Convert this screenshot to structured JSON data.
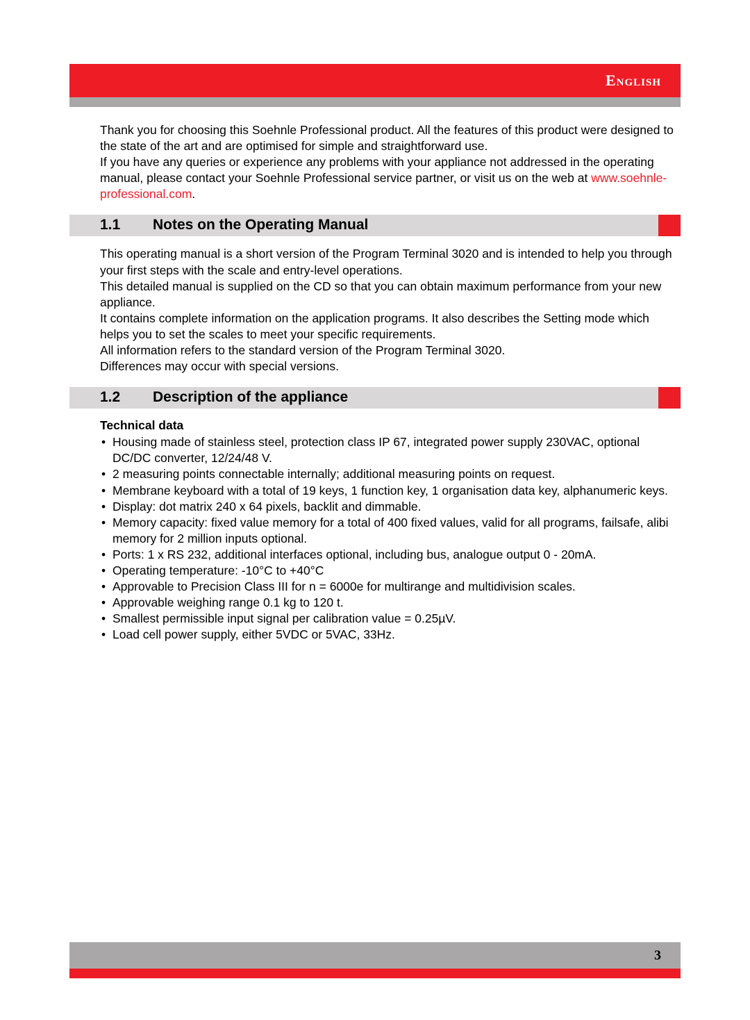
{
  "header": {
    "language": "English",
    "red_color": "#ee1c25",
    "grey_color": "#a9a7a8"
  },
  "intro": {
    "p1": "Thank you for choosing this Soehnle Professional product. All the features of this product were designed to the state of the art and are optimised for simple and straightforward use.",
    "p2_pre": "If you have any queries or experience any problems with your appliance not addressed in the operating manual, please contact your Soehnle Professional service partner, or visit us on the web at ",
    "link_text": "www.soehnle-professional.com",
    "p2_post": "."
  },
  "section_1_1": {
    "num": "1.1",
    "title": "Notes on the Operating Manual",
    "body": "This operating manual is a short version of the Program Terminal 3020 and is intended to help you through your first steps with the scale and entry-level operations.\nThis detailed manual is supplied on the CD so that you can obtain maximum performance from your new appliance.\nIt contains complete information on the application programs. It also describes the Setting mode which helps you to set the scales to meet your specific requirements.\nAll information refers to the standard version of the Program Terminal 3020.\nDifferences may occur with special versions."
  },
  "section_1_2": {
    "num": "1.2",
    "title": "Description of the appliance",
    "subhead": "Technical data",
    "items": [
      "Housing made of stainless steel, protection class IP 67, integrated power supply 230VAC, optional DC/DC converter, 12/24/48 V.",
      "2 measuring points connectable internally; additional measuring points on request.",
      "Membrane keyboard with a total of 19 keys, 1 function key, 1 organisation data key, alphanumeric keys.",
      "Display: dot matrix 240 x 64 pixels, backlit and dimmable.",
      "Memory capacity: fixed value memory for a total of 400 fixed values, valid for all programs, failsafe, alibi memory for 2 million inputs optional.",
      "Ports: 1 x RS 232, additional interfaces optional, including bus, analogue output 0 - 20mA.",
      "Operating temperature: -10°C to +40°C",
      "Approvable to Precision Class III for n = 6000e for multirange and multidivision scales.",
      "Approvable weighing range 0.1 kg to 120 t.",
      "Smallest permissible input signal per calibration value = 0.25µV.",
      "Load cell power supply, either 5VDC or 5VAC, 33Hz."
    ]
  },
  "footer": {
    "page_number": "3"
  }
}
